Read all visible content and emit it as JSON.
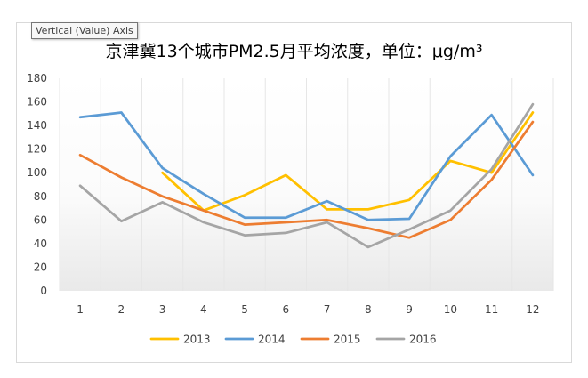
{
  "tooltip": {
    "text": "Vertical (Value) Axis"
  },
  "chart_data": {
    "type": "line",
    "title": "京津冀13个城市PM2.5月平均浓度，单位：μg/m³",
    "xlabel": "",
    "ylabel": "",
    "x": [
      1,
      2,
      3,
      4,
      5,
      6,
      7,
      8,
      9,
      10,
      11,
      12
    ],
    "ylim": [
      0,
      180
    ],
    "yticks": [
      0,
      20,
      40,
      60,
      80,
      100,
      120,
      140,
      160,
      180
    ],
    "grid": false,
    "legend_position": "bottom",
    "series": [
      {
        "name": "2013",
        "color": "#ffc000",
        "values": [
          null,
          null,
          100,
          68,
          81,
          98,
          69,
          69,
          77,
          110,
          100,
          151
        ]
      },
      {
        "name": "2014",
        "color": "#5b9bd5",
        "values": [
          147,
          151,
          104,
          82,
          62,
          62,
          76,
          60,
          61,
          114,
          149,
          98
        ]
      },
      {
        "name": "2015",
        "color": "#ed7d31",
        "values": [
          115,
          96,
          80,
          68,
          56,
          58,
          60,
          53,
          45,
          60,
          94,
          143
        ]
      },
      {
        "name": "2016",
        "color": "#a5a5a5",
        "values": [
          89,
          59,
          75,
          58,
          47,
          49,
          58,
          37,
          52,
          68,
          103,
          158
        ]
      }
    ]
  }
}
